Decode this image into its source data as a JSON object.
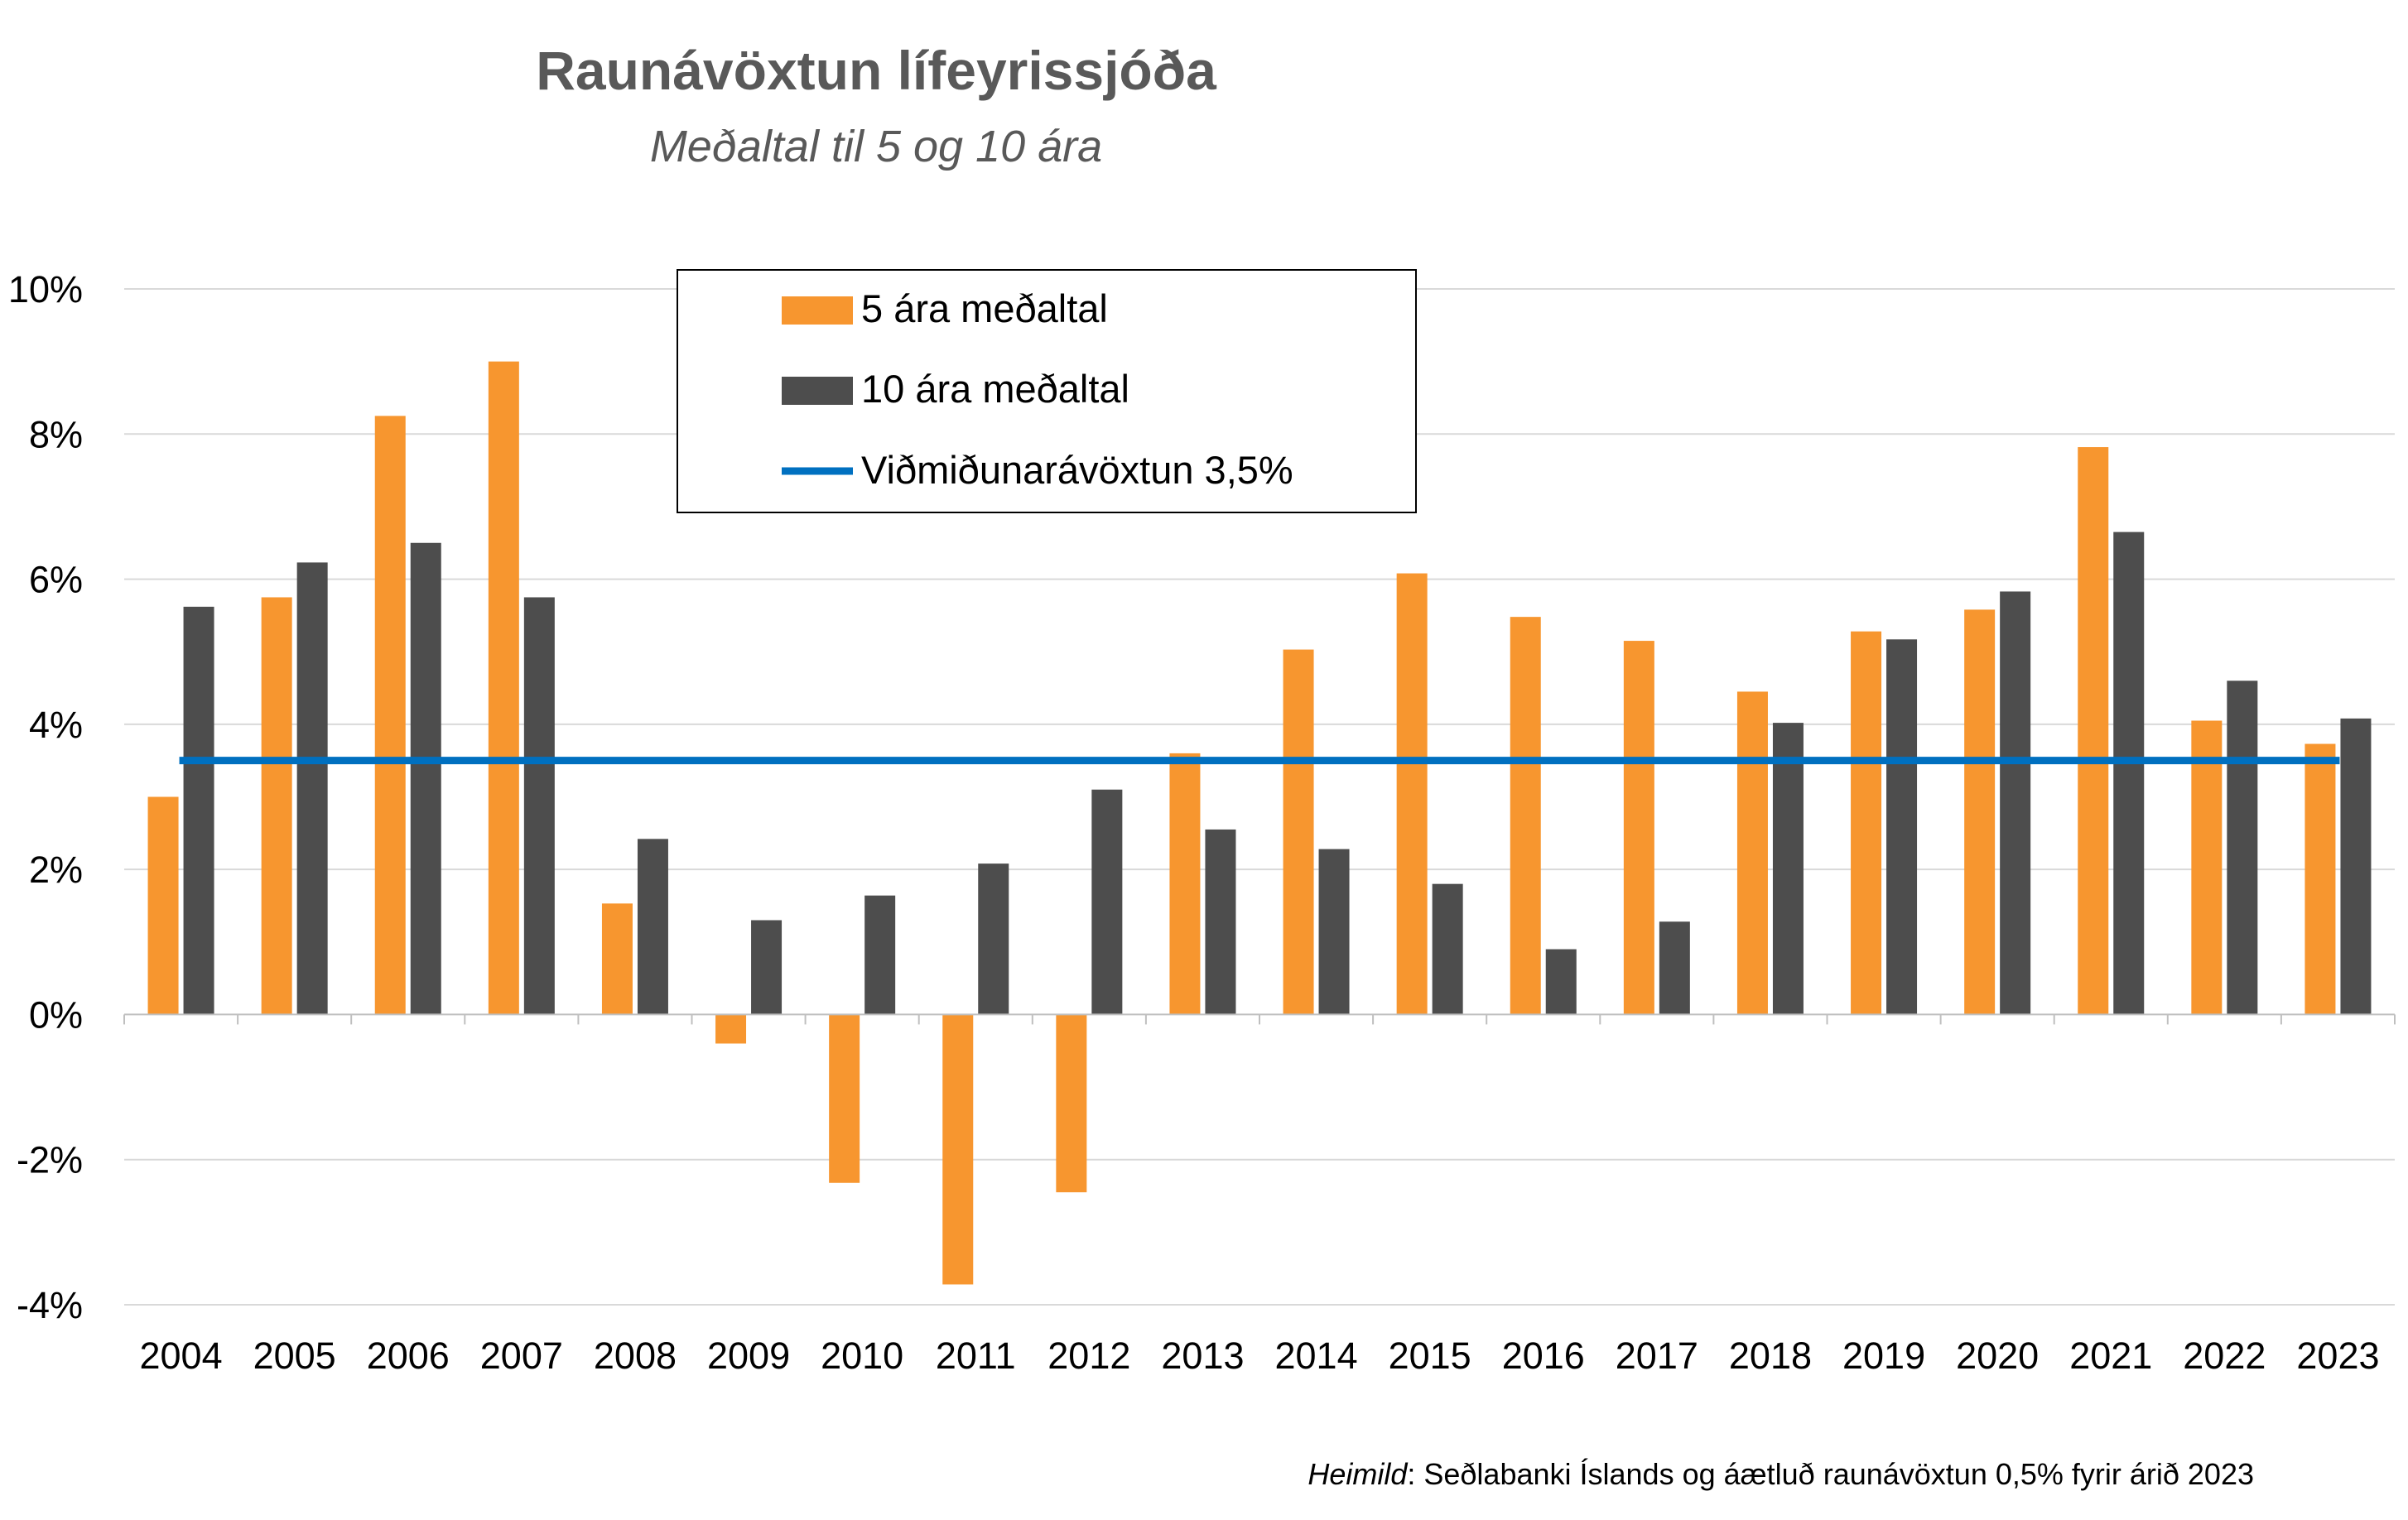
{
  "colors": {
    "five_year": "#F7962F",
    "ten_year": "#4D4D4D",
    "reference": "#0070C0",
    "grid": "#D9D9D9",
    "axis": "#BFBFBF",
    "title": "#595959"
  },
  "source": {
    "label": "Heimild",
    "text": ": Seðlabanki Íslands og áætluð raunávöxtun 0,5% fyrir árið 2023"
  },
  "chart_data": {
    "type": "bar",
    "title": "Raunávöxtun lífeyrissjóða",
    "subtitle": "Meðaltal til 5 og 10 ára",
    "xlabel": "",
    "ylabel": "",
    "ylim": [
      -4,
      10
    ],
    "yticks": [
      10,
      8,
      6,
      4,
      2,
      0,
      -2,
      -4
    ],
    "ytick_labels": [
      "10%",
      "8%",
      "6%",
      "4%",
      "2%",
      "0%",
      "-2%",
      "-4%"
    ],
    "grid": true,
    "legend_position": "top-center",
    "categories": [
      "2004",
      "2005",
      "2006",
      "2007",
      "2008",
      "2009",
      "2010",
      "2011",
      "2012",
      "2013",
      "2014",
      "2015",
      "2016",
      "2017",
      "2018",
      "2019",
      "2020",
      "2021",
      "2022",
      "2023"
    ],
    "series": [
      {
        "name": "5 ára meðaltal",
        "type": "bar",
        "color": "#F7962F",
        "values": [
          3.0,
          5.75,
          8.25,
          9.0,
          1.53,
          -0.4,
          -2.32,
          -3.72,
          -2.45,
          3.6,
          5.03,
          6.08,
          5.48,
          5.15,
          4.45,
          5.28,
          5.58,
          7.82,
          4.05,
          3.73
        ]
      },
      {
        "name": "10 ára meðaltal",
        "type": "bar",
        "color": "#4D4D4D",
        "values": [
          5.62,
          6.23,
          6.5,
          5.75,
          2.42,
          1.3,
          1.64,
          2.08,
          3.1,
          2.55,
          2.28,
          1.8,
          0.9,
          1.28,
          4.02,
          5.17,
          5.83,
          6.65,
          4.6,
          4.08
        ]
      },
      {
        "name": "Viðmiðunarávöxtun 3,5%",
        "type": "line",
        "color": "#0070C0",
        "value": 3.5
      }
    ]
  }
}
